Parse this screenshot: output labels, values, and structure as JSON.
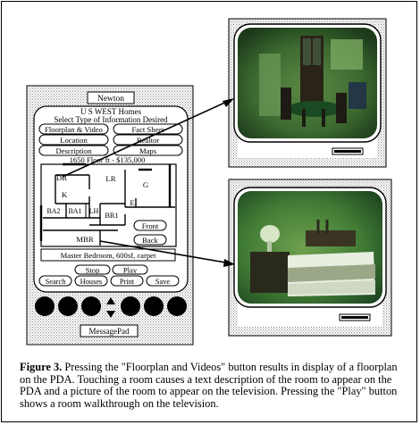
{
  "pda": {
    "device_name": "Newton",
    "header_line1": "U S WEST Homes",
    "header_line2": "Select Type of Information Desired",
    "buttons": [
      {
        "label": "Floorplan & Video"
      },
      {
        "label": "Fact Sheet"
      },
      {
        "label": "Location"
      },
      {
        "label": "Realtor"
      },
      {
        "label": "Description"
      },
      {
        "label": "Maps"
      }
    ],
    "info_line": "1650 Floor ft - $135,000",
    "rooms": {
      "dr": "DR",
      "lr": "LR",
      "k": "K",
      "g": "G",
      "e": "E",
      "ba2": "BA2",
      "ba1": "BA1",
      "lh": "LH",
      "br1": "BR1",
      "mbr": "MBR"
    },
    "front_button": "Front",
    "back_button": "Back",
    "room_description": "Master Bedroom, 600sf, carpet",
    "stop_button": "Stop",
    "play_button": "Play",
    "bottom_buttons": [
      {
        "label": "Search"
      },
      {
        "label": "Houses"
      },
      {
        "label": "Print"
      },
      {
        "label": "Save"
      }
    ],
    "footer_label": "MessagePad"
  },
  "caption": {
    "label": "Figure 3.",
    "text": "Pressing the \"Floorplan and Videos\" button results in display of a floorplan on the PDA.  Touching a room causes a text description of the room to appear on the PDA and a picture of the room to appear on the television. Pressing the \"Play\" button shows a room walkthrough on the television."
  },
  "colors": {
    "screen_green": "#4a7c3a",
    "screen_dark": "#1e3a1e",
    "pda_dots": "#b8b8b8"
  }
}
